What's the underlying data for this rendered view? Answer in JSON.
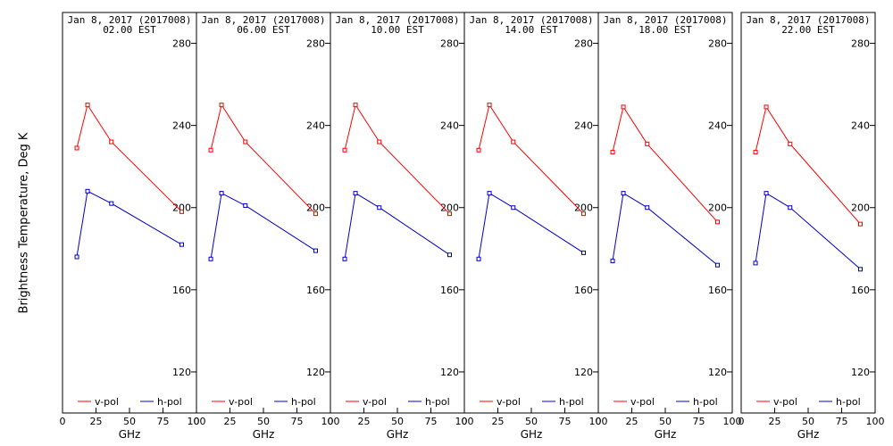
{
  "chart_data": {
    "type": "line",
    "ylabel": "Brightness Temperature, Deg K",
    "xlabel": "GHz",
    "xlim": [
      0,
      100
    ],
    "ylim": [
      100,
      295
    ],
    "xticks": [
      0,
      25,
      50,
      75,
      100
    ],
    "yticks": [
      120,
      160,
      200,
      240,
      280
    ],
    "legend_placement": "bottom",
    "colors": {
      "v-pol": "#ff0000",
      "h-pol": "#0000cc"
    },
    "panels": [
      {
        "title": "Jan  8, 2017 (2017008)",
        "subtitle": "02.00 EST",
        "x": [
          10.7,
          18.7,
          36.5,
          89.0
        ],
        "series": [
          {
            "name": "v-pol",
            "values": [
              229,
              250,
              232,
              198
            ]
          },
          {
            "name": "h-pol",
            "values": [
              176,
              208,
              202,
              182
            ]
          }
        ]
      },
      {
        "title": "Jan  8, 2017 (2017008)",
        "subtitle": "06.00 EST",
        "x": [
          10.7,
          18.7,
          36.5,
          89.0
        ],
        "series": [
          {
            "name": "v-pol",
            "values": [
              228,
              250,
              232,
              197
            ]
          },
          {
            "name": "h-pol",
            "values": [
              175,
              207,
              201,
              179
            ]
          }
        ]
      },
      {
        "title": "Jan  8, 2017 (2017008)",
        "subtitle": "10.00 EST",
        "x": [
          10.7,
          18.7,
          36.5,
          89.0
        ],
        "series": [
          {
            "name": "v-pol",
            "values": [
              228,
              250,
              232,
              197
            ]
          },
          {
            "name": "h-pol",
            "values": [
              175,
              207,
              200,
              177
            ]
          }
        ]
      },
      {
        "title": "Jan  8, 2017 (2017008)",
        "subtitle": "14.00 EST",
        "x": [
          10.7,
          18.7,
          36.5,
          89.0
        ],
        "series": [
          {
            "name": "v-pol",
            "values": [
              228,
              250,
              232,
              197
            ]
          },
          {
            "name": "h-pol",
            "values": [
              175,
              207,
              200,
              178
            ]
          }
        ]
      },
      {
        "title": "Jan  8, 2017 (2017008)",
        "subtitle": "18.00 EST",
        "x": [
          10.7,
          18.7,
          36.5,
          89.0
        ],
        "series": [
          {
            "name": "v-pol",
            "values": [
              227,
              249,
              231,
              193
            ]
          },
          {
            "name": "h-pol",
            "values": [
              174,
              207,
              200,
              172
            ]
          }
        ]
      },
      {
        "title": "Jan  8, 2017 (2017008)",
        "subtitle": "22.00 EST",
        "x": [
          10.7,
          18.7,
          36.5,
          89.0
        ],
        "series": [
          {
            "name": "v-pol",
            "values": [
              227,
              249,
              231,
              192
            ]
          },
          {
            "name": "h-pol",
            "values": [
              173,
              207,
              200,
              170
            ]
          }
        ]
      }
    ]
  }
}
